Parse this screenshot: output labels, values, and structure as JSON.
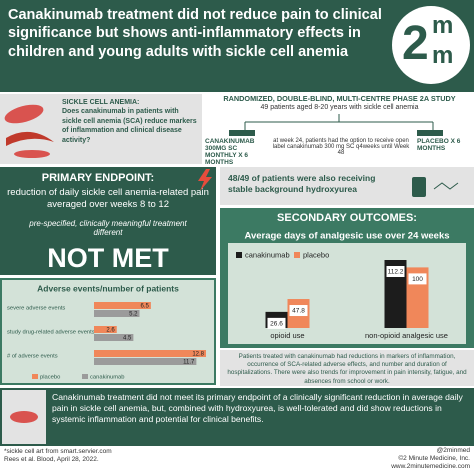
{
  "header": {
    "title": "Canakinumab treatment did not reduce pain to clinical significance but shows anti-inflammatory effects in children and young adults with sickle cell anemia",
    "logo": [
      "2",
      "m",
      "m"
    ]
  },
  "question": {
    "heading": "SICKLE CELL ANEMIA:",
    "text": "Does canakinumab in patients with sickle cell anemia (SCA) reduce markers of inflammation and clinical disease activity?"
  },
  "study": {
    "design": "RANDOMIZED, DOUBLE-BLIND, MULTI-CENTRE PHASE 2A STUDY",
    "population": "49 patients aged 8-20 years with sickle cell anemia",
    "arm1": "CANAKINUMAB 300MG SC MONTHLY X 6 MONTHS",
    "open_label": "at week 24, patients had the option to receive open label canakinumab 300 mg SC q4weeks until Week 48",
    "arm2": "PLACEBO X 6 MONTHS"
  },
  "primary": {
    "heading": "PRIMARY ENDPOINT:",
    "text": "reduction of daily sickle cell anemia-related pain averaged over weeks 8 to 12",
    "note": "pre-specified, clinically meaningful treatment different",
    "result": "NOT MET"
  },
  "background": "48/49 of patients were also receiving stable background hydroxyurea",
  "secondary": {
    "heading": "SECONDARY OUTCOMES:",
    "summary": "Patients treated with canakinumab had reductions in markers of inflammation, occurrence of SCA-related adverse effects, and number and duration of hospitalizations. There were also trends for improvement in pain intensity, fatigue, and absences from school or work."
  },
  "conclusion": "Canakinumab treatment did not meet its primary endpoint of a clinically significant reduction in average daily pain in sickle cell anemia, but, combined with hydroxyurea, is well-tolerated and did show reductions in systemic inflammation and potential for clinical benefits.",
  "footer": {
    "art_credit": "*sickle cell art from smart.servier.com",
    "citation": "Rees et al. Blood, April 28, 2022.",
    "handle": "@2minmed",
    "copyright": "©2 Minute Medicine, Inc.",
    "website": "www.2minutemedicine.com"
  },
  "chart_data": [
    {
      "type": "bar",
      "horizontal": true,
      "title": "Adverse events/number of patients",
      "categories": [
        "severe adverse events",
        "study drug-related adverse events",
        "# of adverse events"
      ],
      "series": [
        {
          "name": "placebo",
          "color": "#f0875a",
          "values": [
            6.5,
            2.6,
            12.8
          ]
        },
        {
          "name": "canakinumab",
          "color": "#9b9b9b",
          "values": [
            5.2,
            4.5,
            11.7
          ]
        }
      ]
    },
    {
      "type": "bar",
      "horizontal": false,
      "title": "Average days of analgesic use over 24 weeks",
      "categories": [
        "opioid use",
        "non-opioid analgesic use"
      ],
      "series": [
        {
          "name": "canakinumab",
          "color": "#1c1c1c",
          "values": [
            26.6,
            112.2
          ]
        },
        {
          "name": "placebo",
          "color": "#f0875a",
          "values": [
            47.8,
            100
          ]
        }
      ]
    }
  ]
}
